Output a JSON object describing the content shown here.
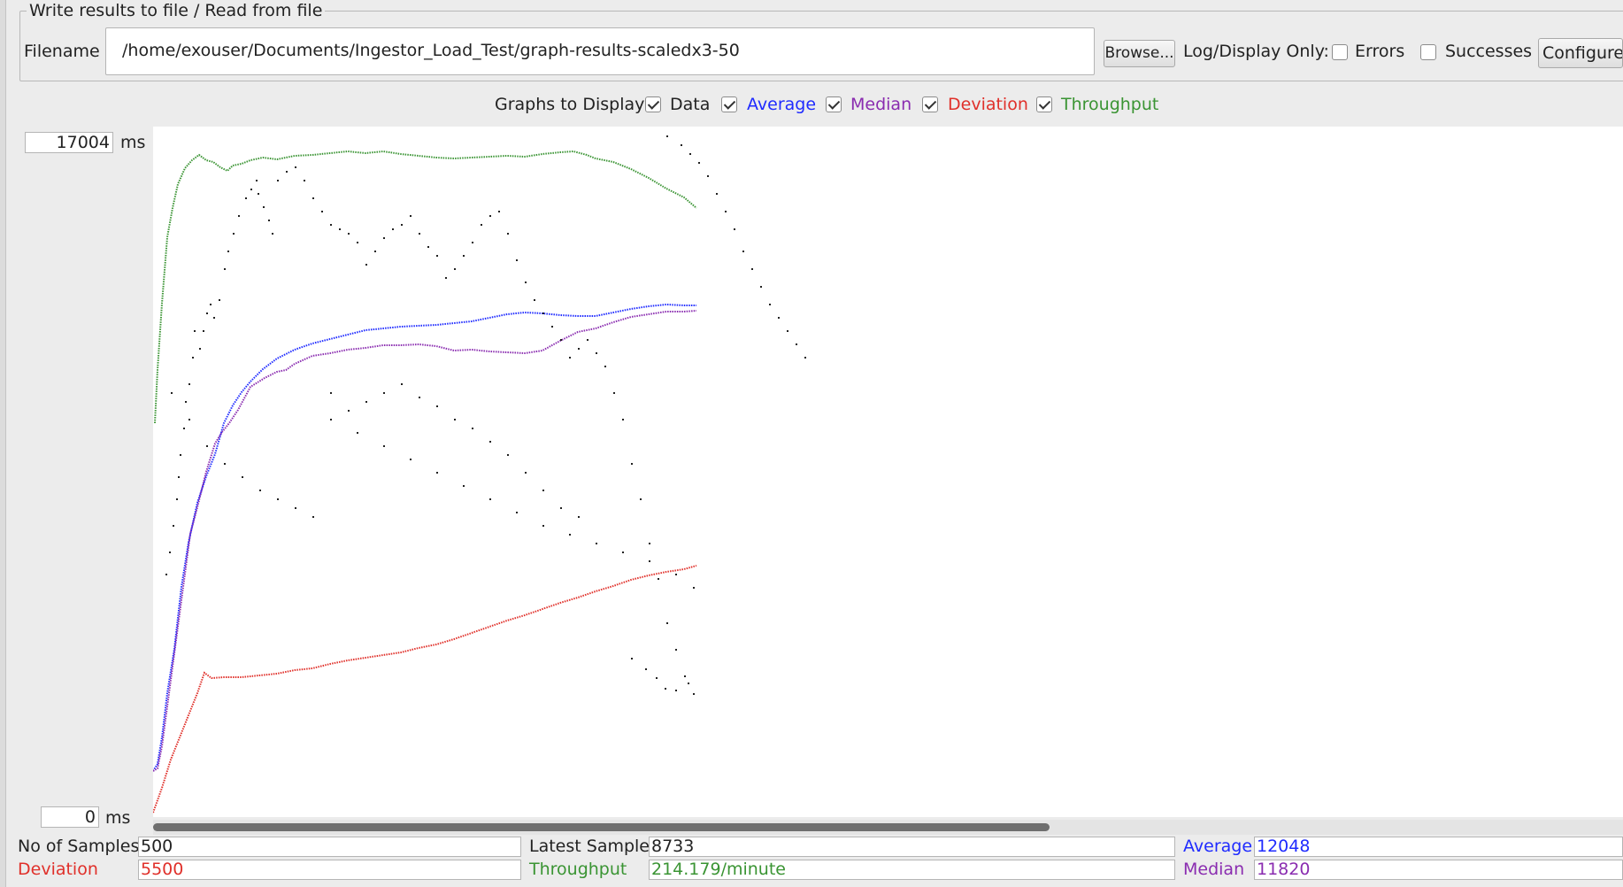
{
  "file_panel": {
    "legend": "Write results to file / Read from file",
    "filename_label": "Filename",
    "filename_value": "/home/exouser/Documents/Ingestor_Load_Test/graph-results-scaledx3-50",
    "browse_label": "Browse...",
    "log_display_label": "Log/Display Only:",
    "errors_label": "Errors",
    "errors_checked": false,
    "successes_label": "Successes",
    "successes_checked": false,
    "configure_label": "Configure"
  },
  "graphs_to_display": {
    "label": "Graphs to Display",
    "options": [
      {
        "label": "Data",
        "checked": true,
        "color": "#222222"
      },
      {
        "label": "Average",
        "checked": true,
        "color": "#1f2bff"
      },
      {
        "label": "Median",
        "checked": true,
        "color": "#8a2cb0"
      },
      {
        "label": "Deviation",
        "checked": true,
        "color": "#e0302a"
      },
      {
        "label": "Throughput",
        "checked": true,
        "color": "#3a9433"
      }
    ]
  },
  "graph": {
    "y_max": "17004",
    "y_min": "0",
    "y_unit": "ms"
  },
  "chart_data": {
    "type": "scatter",
    "samples": 500,
    "ylim": [
      0,
      17004
    ],
    "ylabel": "ms",
    "series": [
      {
        "name": "Data",
        "color": "#222222"
      },
      {
        "name": "Average",
        "color": "#1f2bff",
        "final_value": 12048
      },
      {
        "name": "Median",
        "color": "#8a2cb0",
        "final_value": 11820
      },
      {
        "name": "Deviation",
        "color": "#e0302a",
        "final_value": 5500
      },
      {
        "name": "Throughput",
        "color": "#3a9433",
        "final_value": "214.179/minute"
      }
    ]
  },
  "stats": {
    "no_of_samples_label": "No of Samples",
    "no_of_samples_value": "500",
    "latest_sample_label": "Latest Sample",
    "latest_sample_value": "8733",
    "average_label": "Average",
    "average_value": "12048",
    "deviation_label": "Deviation",
    "deviation_value": "5500",
    "throughput_label": "Throughput",
    "throughput_value": "214.179/minute",
    "median_label": "Median",
    "median_value": "11820"
  },
  "colors": {
    "data": "#222222",
    "average": "#1f2bff",
    "median": "#8a2cb0",
    "deviation": "#e0302a",
    "throughput": "#3a9433"
  }
}
